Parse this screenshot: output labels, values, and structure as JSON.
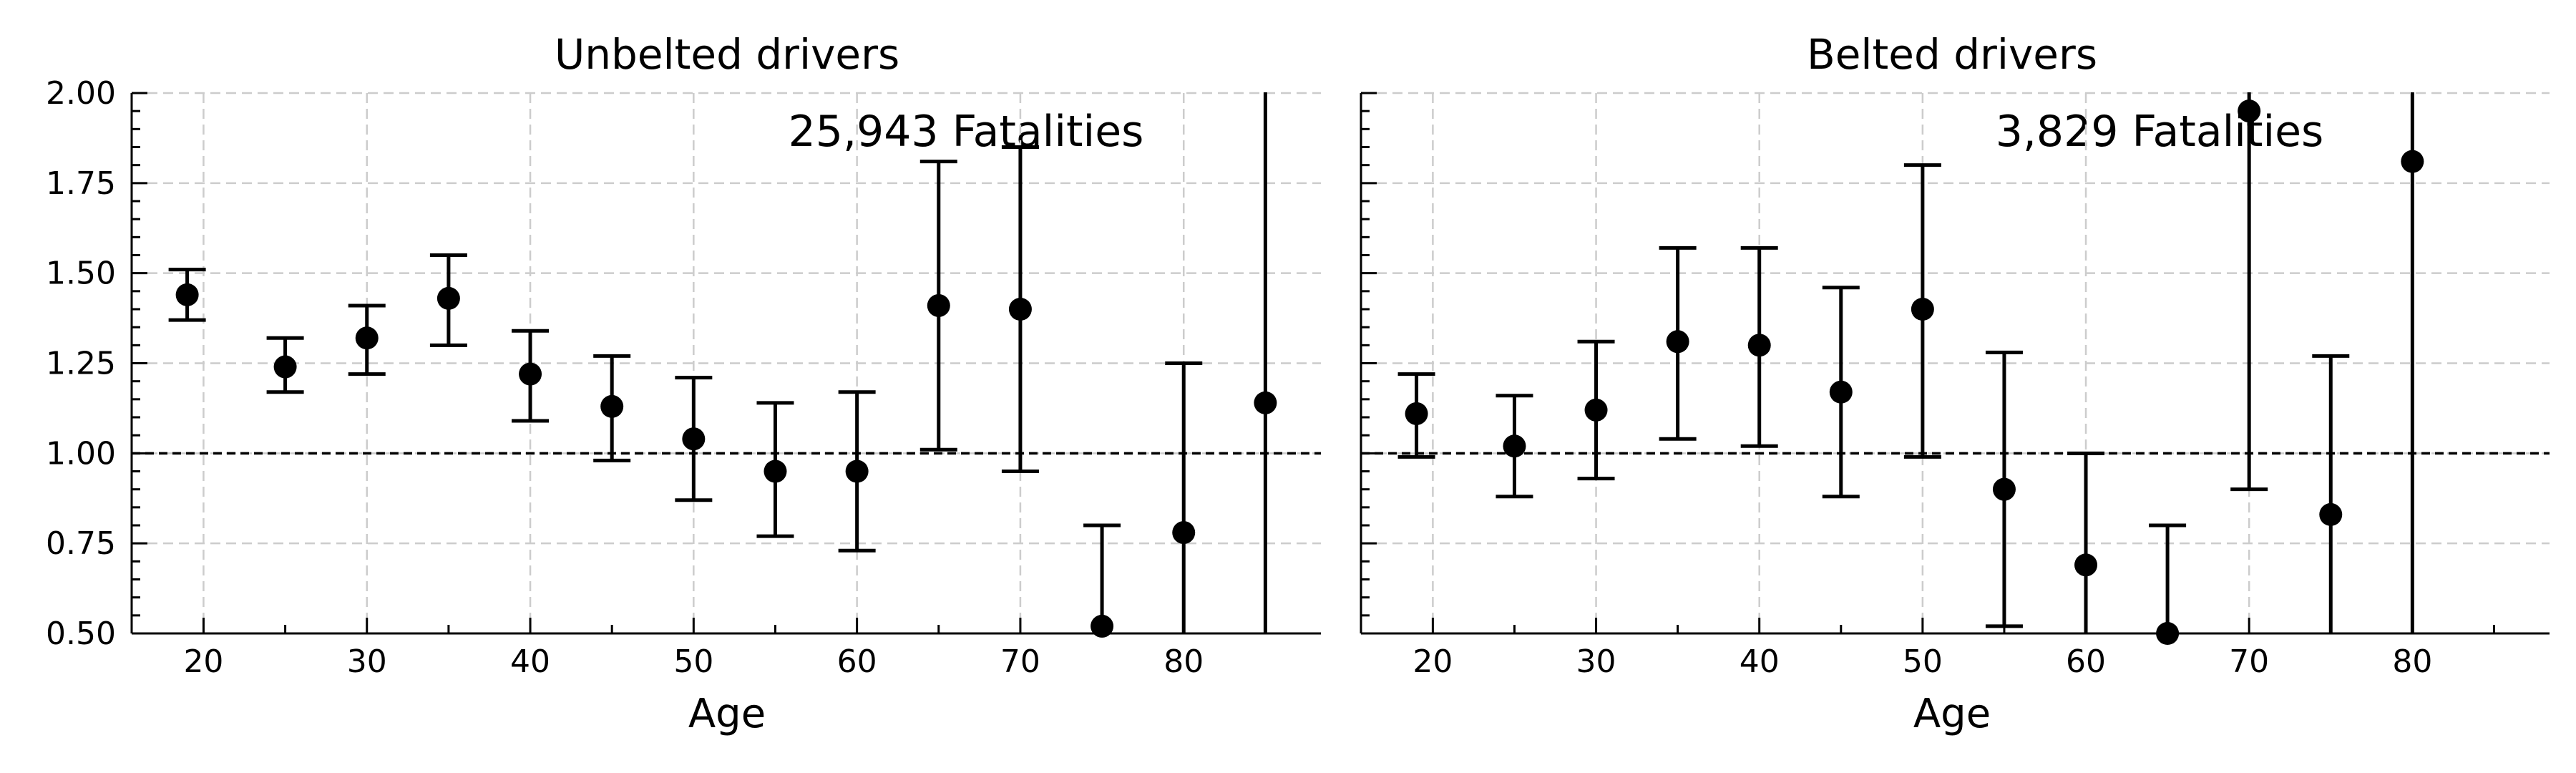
{
  "chart_data": [
    {
      "type": "scatter",
      "title": "Unbelted drivers",
      "xlabel": "Age",
      "ylabel": "",
      "annotation": "25,943 Fatalities",
      "xlim": [
        15.6,
        88.4
      ],
      "ylim": [
        0.5,
        2.0
      ],
      "xticks": [
        20,
        30,
        40,
        50,
        60,
        70,
        80
      ],
      "yticks": [
        0.5,
        0.75,
        1.0,
        1.25,
        1.5,
        1.75,
        2.0
      ],
      "ytick_labels": [
        "0.50",
        "0.75",
        "1.00",
        "1.25",
        "1.50",
        "1.75",
        "2.00"
      ],
      "grid": true,
      "reference_line": 1.0,
      "x": [
        19,
        25,
        30,
        35,
        40,
        45,
        50,
        55,
        60,
        65,
        70,
        75,
        80,
        85
      ],
      "y": [
        1.44,
        1.24,
        1.32,
        1.43,
        1.22,
        1.13,
        1.04,
        0.95,
        0.95,
        1.41,
        1.4,
        0.52,
        0.78,
        1.14
      ],
      "y_low": [
        1.37,
        1.17,
        1.22,
        1.3,
        1.09,
        0.98,
        0.87,
        0.77,
        0.73,
        1.01,
        0.95,
        0.3,
        0.3,
        0.3
      ],
      "y_high": [
        1.51,
        1.32,
        1.41,
        1.55,
        1.34,
        1.27,
        1.21,
        1.14,
        1.17,
        1.81,
        1.85,
        0.8,
        1.25,
        2.2
      ]
    },
    {
      "type": "scatter",
      "title": "Belted drivers",
      "xlabel": "Age",
      "ylabel": "",
      "annotation": "3,829 Fatalities",
      "xlim": [
        15.6,
        88.4
      ],
      "ylim": [
        0.5,
        2.0
      ],
      "xticks": [
        20,
        30,
        40,
        50,
        60,
        70,
        80
      ],
      "yticks": [
        0.5,
        0.75,
        1.0,
        1.25,
        1.5,
        1.75,
        2.0
      ],
      "grid": true,
      "reference_line": 1.0,
      "x": [
        19,
        25,
        30,
        35,
        40,
        45,
        50,
        55,
        60,
        65,
        70,
        75,
        80
      ],
      "y": [
        1.11,
        1.02,
        1.12,
        1.31,
        1.3,
        1.17,
        1.4,
        0.9,
        0.69,
        0.5,
        1.95,
        0.83,
        1.81
      ],
      "y_low": [
        0.99,
        0.88,
        0.93,
        1.04,
        1.02,
        0.88,
        0.99,
        0.52,
        0.3,
        0.3,
        0.9,
        0.3,
        0.3
      ],
      "y_high": [
        1.22,
        1.16,
        1.31,
        1.57,
        1.57,
        1.46,
        1.8,
        1.28,
        1.0,
        0.8,
        2.2,
        1.27,
        2.2
      ]
    }
  ]
}
